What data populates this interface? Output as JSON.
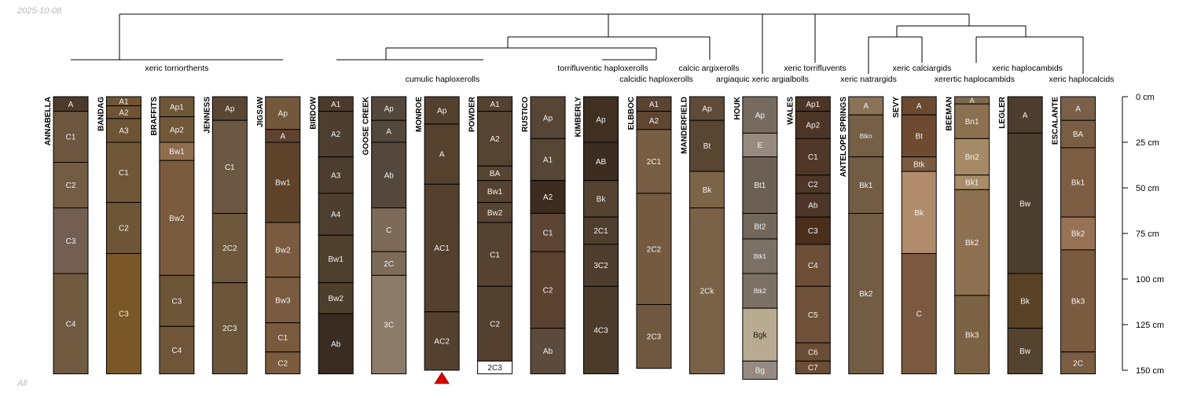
{
  "header": {
    "date": "2025-10-08"
  },
  "footer": {
    "label": "All"
  },
  "taxa": [
    "xeric torriorthents",
    "cumulic haploxerolls",
    "torrifluventic haploxerolls",
    "calcidic haploxerolls",
    "calcic argixerolls",
    "argiaquic xeric argialbolls",
    "xeric torrifluvents",
    "xeric natrargids",
    "xeric calciargids",
    "xerertic haplocambids",
    "xeric haplocambids",
    "xeric haplocalcids"
  ],
  "depth_axis": {
    "unit": "cm",
    "max": 150,
    "ticks": [
      {
        "value": 0,
        "label": "0 cm"
      },
      {
        "value": 25,
        "label": "25 cm"
      },
      {
        "value": 50,
        "label": "50 cm"
      },
      {
        "value": 75,
        "label": "75 cm"
      },
      {
        "value": 100,
        "label": "100 cm"
      },
      {
        "value": 125,
        "label": "125 cm"
      },
      {
        "value": 150,
        "label": "150 cm"
      }
    ]
  },
  "colors": {
    "text_light": "#f2f2f2",
    "text_dark": "#1a1a1a",
    "marker": "#e00000",
    "line": "#000000"
  },
  "profiles": [
    {
      "name": "ANNABELLA",
      "horizons": [
        {
          "name": "A",
          "top": 0,
          "bottom": 8,
          "color": "#4d3a2a"
        },
        {
          "name": "C1",
          "top": 8,
          "bottom": 36,
          "color": "#6d563f"
        },
        {
          "name": "C2",
          "top": 36,
          "bottom": 61,
          "color": "#735c44"
        },
        {
          "name": "C3",
          "top": 61,
          "bottom": 97,
          "color": "#735e52"
        },
        {
          "name": "C4",
          "top": 97,
          "bottom": 152,
          "color": "#705a40"
        }
      ]
    },
    {
      "name": "BANDAG",
      "horizons": [
        {
          "name": "A1",
          "top": 0,
          "bottom": 5,
          "color": "#705535"
        },
        {
          "name": "A2",
          "top": 5,
          "bottom": 12,
          "color": "#6e5334"
        },
        {
          "name": "A3",
          "top": 12,
          "bottom": 25,
          "color": "#6d5435"
        },
        {
          "name": "C1",
          "top": 25,
          "bottom": 58,
          "color": "#6f5637"
        },
        {
          "name": "C2",
          "top": 58,
          "bottom": 86,
          "color": "#6e5535"
        },
        {
          "name": "C3",
          "top": 86,
          "bottom": 152,
          "color": "#7a5726"
        }
      ]
    },
    {
      "name": "BRAFFITS",
      "horizons": [
        {
          "name": "Ap1",
          "top": 0,
          "bottom": 11,
          "color": "#6e5638"
        },
        {
          "name": "Ap2",
          "top": 11,
          "bottom": 25,
          "color": "#705838"
        },
        {
          "name": "Bw1",
          "top": 25,
          "bottom": 35,
          "color": "#8f6e50"
        },
        {
          "name": "Bw2",
          "top": 35,
          "bottom": 98,
          "color": "#7a5b3e"
        },
        {
          "name": "C3",
          "top": 98,
          "bottom": 126,
          "color": "#6c5436"
        },
        {
          "name": "C4",
          "top": 126,
          "bottom": 152,
          "color": "#6f5638"
        }
      ]
    },
    {
      "name": "JENNESS",
      "horizons": [
        {
          "name": "Ap",
          "top": 0,
          "bottom": 13,
          "color": "#5a4635"
        },
        {
          "name": "C1",
          "top": 13,
          "bottom": 64,
          "color": "#6b5843"
        },
        {
          "name": "2C2",
          "top": 64,
          "bottom": 102,
          "color": "#6d573d"
        },
        {
          "name": "2C3",
          "top": 102,
          "bottom": 152,
          "color": "#6c563b"
        }
      ]
    },
    {
      "name": "JIGSAW",
      "horizons": [
        {
          "name": "Ap",
          "top": 0,
          "bottom": 18,
          "color": "#74583c"
        },
        {
          "name": "A",
          "top": 18,
          "bottom": 25,
          "color": "#5f4330"
        },
        {
          "name": "Bw1",
          "top": 25,
          "bottom": 69,
          "color": "#5e4229"
        },
        {
          "name": "Bw2",
          "top": 69,
          "bottom": 99,
          "color": "#7a5b3f"
        },
        {
          "name": "Bw3",
          "top": 99,
          "bottom": 124,
          "color": "#7a5b3f"
        },
        {
          "name": "C1",
          "top": 124,
          "bottom": 140,
          "color": "#7a5a3d"
        },
        {
          "name": "C2",
          "top": 140,
          "bottom": 152,
          "color": "#7b5a3e"
        }
      ]
    },
    {
      "name": "BIRDOW",
      "horizons": [
        {
          "name": "A1",
          "top": 0,
          "bottom": 8,
          "color": "#4c3b2d"
        },
        {
          "name": "A2",
          "top": 8,
          "bottom": 33,
          "color": "#4d3e2f"
        },
        {
          "name": "A3",
          "top": 33,
          "bottom": 53,
          "color": "#4c3d2e"
        },
        {
          "name": "A4",
          "top": 53,
          "bottom": 76,
          "color": "#4d3e2f"
        },
        {
          "name": "Bw1",
          "top": 76,
          "bottom": 102,
          "color": "#4f3f2d"
        },
        {
          "name": "Bw2",
          "top": 102,
          "bottom": 119,
          "color": "#4e3e2c"
        },
        {
          "name": "Ab",
          "top": 119,
          "bottom": 152,
          "color": "#3a2c21"
        }
      ]
    },
    {
      "name": "GOOSE CREEK",
      "horizons": [
        {
          "name": "Ap",
          "top": 0,
          "bottom": 13,
          "color": "#54473c"
        },
        {
          "name": "A",
          "top": 13,
          "bottom": 25,
          "color": "#54473c"
        },
        {
          "name": "Ab",
          "top": 25,
          "bottom": 61,
          "color": "#54473c"
        },
        {
          "name": "C",
          "top": 61,
          "bottom": 85,
          "color": "#7d6a58"
        },
        {
          "name": "2C",
          "top": 85,
          "bottom": 98,
          "color": "#7d6a58"
        },
        {
          "name": "3C",
          "top": 98,
          "bottom": 152,
          "color": "#8c7b68"
        }
      ]
    },
    {
      "name": "MONROE",
      "horizons": [
        {
          "name": "Ap",
          "top": 0,
          "bottom": 15,
          "color": "#54402f"
        },
        {
          "name": "A",
          "top": 15,
          "bottom": 48,
          "color": "#56412f"
        },
        {
          "name": "AC1",
          "top": 48,
          "bottom": 118,
          "color": "#54402f"
        },
        {
          "name": "AC2",
          "top": 118,
          "bottom": 150,
          "color": "#54402f"
        }
      ]
    },
    {
      "name": "POWDER",
      "horizons": [
        {
          "name": "A1",
          "top": 0,
          "bottom": 8,
          "color": "#55412f"
        },
        {
          "name": "A2",
          "top": 8,
          "bottom": 38,
          "color": "#574331"
        },
        {
          "name": "BA",
          "top": 38,
          "bottom": 46,
          "color": "#574331"
        },
        {
          "name": "Bw1",
          "top": 46,
          "bottom": 58,
          "color": "#564230"
        },
        {
          "name": "Bw2",
          "top": 58,
          "bottom": 69,
          "color": "#574331"
        },
        {
          "name": "C1",
          "top": 69,
          "bottom": 104,
          "color": "#564230"
        },
        {
          "name": "C2",
          "top": 104,
          "bottom": 145,
          "color": "#54402f"
        },
        {
          "name": "2C3",
          "top": 145,
          "bottom": 152,
          "color": "#ffffff"
        }
      ]
    },
    {
      "name": "RUSTICO",
      "horizons": [
        {
          "name": "Ap",
          "top": 0,
          "bottom": 23,
          "color": "#574535"
        },
        {
          "name": "A1",
          "top": 23,
          "bottom": 46,
          "color": "#574535"
        },
        {
          "name": "A2",
          "top": 46,
          "bottom": 64,
          "color": "#3e2b1f"
        },
        {
          "name": "C1",
          "top": 64,
          "bottom": 85,
          "color": "#5c4534"
        },
        {
          "name": "C2",
          "top": 85,
          "bottom": 127,
          "color": "#5a4130"
        },
        {
          "name": "Ab",
          "top": 127,
          "bottom": 152,
          "color": "#5c4a3c"
        }
      ]
    },
    {
      "name": "KIMBERLY",
      "horizons": [
        {
          "name": "Ap",
          "top": 0,
          "bottom": 25,
          "color": "#3f3022"
        },
        {
          "name": "AB",
          "top": 25,
          "bottom": 46,
          "color": "#3c2d20"
        },
        {
          "name": "Bk",
          "top": 46,
          "bottom": 66,
          "color": "#54412f"
        },
        {
          "name": "2C1",
          "top": 66,
          "bottom": 81,
          "color": "#503e2e"
        },
        {
          "name": "3C2",
          "top": 81,
          "bottom": 104,
          "color": "#4f3d2d"
        },
        {
          "name": "4C3",
          "top": 104,
          "bottom": 152,
          "color": "#4c3a2b"
        }
      ]
    },
    {
      "name": "ELBBOC",
      "horizons": [
        {
          "name": "A1",
          "top": 0,
          "bottom": 8,
          "color": "#5a4331"
        },
        {
          "name": "A2",
          "top": 8,
          "bottom": 18,
          "color": "#5e4632"
        },
        {
          "name": "2C1",
          "top": 18,
          "bottom": 53,
          "color": "#775d43"
        },
        {
          "name": "2C2",
          "top": 53,
          "bottom": 114,
          "color": "#735a41"
        },
        {
          "name": "2C3",
          "top": 114,
          "bottom": 149,
          "color": "#705740"
        }
      ]
    },
    {
      "name": "MANDERFIELD",
      "horizons": [
        {
          "name": "Ap",
          "top": 0,
          "bottom": 13,
          "color": "#5f4b37"
        },
        {
          "name": "Bt",
          "top": 13,
          "bottom": 41,
          "color": "#584532"
        },
        {
          "name": "Bk",
          "top": 41,
          "bottom": 61,
          "color": "#7c6449"
        },
        {
          "name": "2Ck",
          "top": 61,
          "bottom": 152,
          "color": "#7a6248"
        }
      ]
    },
    {
      "name": "HOUK",
      "horizons": [
        {
          "name": "Ap",
          "top": 0,
          "bottom": 20,
          "color": "#776b60"
        },
        {
          "name": "E",
          "top": 20,
          "bottom": 33,
          "color": "#978b7f"
        },
        {
          "name": "Bt1",
          "top": 33,
          "bottom": 64,
          "color": "#6c6055"
        },
        {
          "name": "Bt2",
          "top": 64,
          "bottom": 78,
          "color": "#73675c"
        },
        {
          "name": "Btk1",
          "top": 78,
          "bottom": 97,
          "color": "#7d7165"
        },
        {
          "name": "Btk2",
          "top": 97,
          "bottom": 116,
          "color": "#7d7165"
        },
        {
          "name": "Bgk",
          "top": 116,
          "bottom": 145,
          "color": "#b8ab91"
        },
        {
          "name": "Bg",
          "top": 145,
          "bottom": 155,
          "color": "#948a82"
        }
      ]
    },
    {
      "name": "WALES",
      "horizons": [
        {
          "name": "Ap1",
          "top": 0,
          "bottom": 8,
          "color": "#4d3526"
        },
        {
          "name": "Ap2",
          "top": 8,
          "bottom": 23,
          "color": "#4d3526"
        },
        {
          "name": "C1",
          "top": 23,
          "bottom": 43,
          "color": "#503828"
        },
        {
          "name": "C2",
          "top": 43,
          "bottom": 53,
          "color": "#4d3627"
        },
        {
          "name": "Ab",
          "top": 53,
          "bottom": 66,
          "color": "#4d3627"
        },
        {
          "name": "C3",
          "top": 66,
          "bottom": 81,
          "color": "#4b2e1c"
        },
        {
          "name": "C4",
          "top": 81,
          "bottom": 104,
          "color": "#6d4e36"
        },
        {
          "name": "C5",
          "top": 104,
          "bottom": 135,
          "color": "#6f5038"
        },
        {
          "name": "C6",
          "top": 135,
          "bottom": 145,
          "color": "#6b4d35"
        },
        {
          "name": "C7",
          "top": 145,
          "bottom": 152,
          "color": "#6b4d35"
        }
      ]
    },
    {
      "name": "ANTELOPE SPRINGS",
      "horizons": [
        {
          "name": "A",
          "top": 0,
          "bottom": 10,
          "color": "#8a7257"
        },
        {
          "name": "Btkn",
          "top": 10,
          "bottom": 33,
          "color": "#765f47"
        },
        {
          "name": "Bk1",
          "top": 33,
          "bottom": 64,
          "color": "#735c44"
        },
        {
          "name": "Bk2",
          "top": 64,
          "bottom": 152,
          "color": "#735c44"
        }
      ]
    },
    {
      "name": "SEVY",
      "horizons": [
        {
          "name": "A",
          "top": 0,
          "bottom": 10,
          "color": "#6a4a31"
        },
        {
          "name": "Bt",
          "top": 10,
          "bottom": 33,
          "color": "#6d4a30"
        },
        {
          "name": "Btk",
          "top": 33,
          "bottom": 41,
          "color": "#7a5b40"
        },
        {
          "name": "Bk",
          "top": 41,
          "bottom": 86,
          "color": "#b08c6c"
        },
        {
          "name": "C",
          "top": 86,
          "bottom": 152,
          "color": "#7a5940"
        }
      ]
    },
    {
      "name": "BEEMAN",
      "horizons": [
        {
          "name": "A",
          "top": 0,
          "bottom": 4,
          "color": "#80694f"
        },
        {
          "name": "Bn1",
          "top": 4,
          "bottom": 23,
          "color": "#8c7151"
        },
        {
          "name": "Bn2",
          "top": 23,
          "bottom": 43,
          "color": "#a68a66"
        },
        {
          "name": "Bk1",
          "top": 43,
          "bottom": 51,
          "color": "#a98c6a"
        },
        {
          "name": "Bk2",
          "top": 51,
          "bottom": 109,
          "color": "#8c7050"
        },
        {
          "name": "Bk3",
          "top": 109,
          "bottom": 152,
          "color": "#7c6244"
        }
      ]
    },
    {
      "name": "LEGLER",
      "horizons": [
        {
          "name": "A",
          "top": 0,
          "bottom": 20,
          "color": "#4c3d2e"
        },
        {
          "name": "Bw",
          "top": 20,
          "bottom": 97,
          "color": "#4c3f30"
        },
        {
          "name": "Bk",
          "top": 97,
          "bottom": 127,
          "color": "#5a4226"
        },
        {
          "name": "Bw",
          "top": 127,
          "bottom": 152,
          "color": "#54432f"
        }
      ]
    },
    {
      "name": "ESCALANTE",
      "horizons": [
        {
          "name": "A",
          "top": 0,
          "bottom": 13,
          "color": "#7a6048"
        },
        {
          "name": "BA",
          "top": 13,
          "bottom": 28,
          "color": "#7a5e44"
        },
        {
          "name": "Bk1",
          "top": 28,
          "bottom": 66,
          "color": "#7d5d42"
        },
        {
          "name": "Bk2",
          "top": 66,
          "bottom": 84,
          "color": "#987254"
        },
        {
          "name": "Bk3",
          "top": 84,
          "bottom": 140,
          "color": "#7a5b3f"
        },
        {
          "name": "2C",
          "top": 140,
          "bottom": 152,
          "color": "#7a5d42"
        }
      ]
    }
  ]
}
